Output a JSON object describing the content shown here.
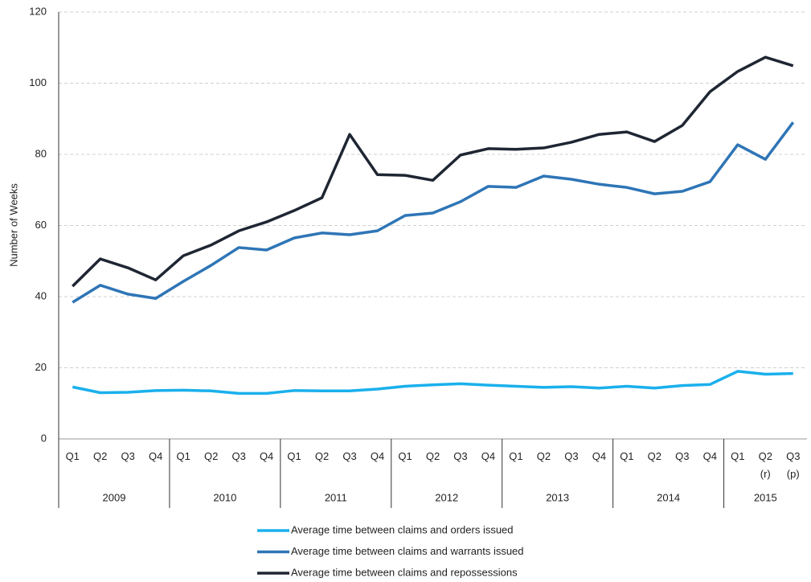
{
  "chart_data": {
    "type": "line",
    "y_label": "Number of Weeks",
    "categories": [
      "Q1",
      "Q2",
      "Q3",
      "Q4",
      "Q1",
      "Q2",
      "Q3",
      "Q4",
      "Q1",
      "Q2",
      "Q3",
      "Q4",
      "Q1",
      "Q2",
      "Q3",
      "Q4",
      "Q1",
      "Q2",
      "Q3",
      "Q4",
      "Q1",
      "Q2",
      "Q3",
      "Q4",
      "Q1",
      "Q2\n(r)",
      "Q3\n(p)"
    ],
    "year_groups": [
      "2009",
      "2010",
      "2011",
      "2012",
      "2013",
      "2014",
      "2015"
    ],
    "series": [
      {
        "name": "Average time between claims and orders issued",
        "color": "#1ab0ec",
        "values": [
          14.6,
          13.0,
          13.1,
          13.6,
          13.7,
          13.5,
          12.8,
          12.8,
          13.6,
          13.5,
          13.5,
          14.0,
          14.8,
          15.2,
          15.5,
          15.1,
          14.8,
          14.5,
          14.7,
          14.3,
          14.8,
          14.3,
          15.0,
          15.3,
          19.0,
          18.2,
          18.4
        ]
      },
      {
        "name": "Average time between claims and warrants issued",
        "color": "#2e75b6",
        "values": [
          38.4,
          43.2,
          40.7,
          39.5,
          44.3,
          48.8,
          53.8,
          53.1,
          56.5,
          57.9,
          57.4,
          58.5,
          62.8,
          63.5,
          66.7,
          71.0,
          70.7,
          73.9,
          73.0,
          71.6,
          70.7,
          68.9,
          69.6,
          72.3,
          82.7,
          78.6,
          89.0
        ]
      },
      {
        "name": "Average time between claims and repossessions",
        "color": "#1f2633",
        "values": [
          42.9,
          50.6,
          48.1,
          44.7,
          51.5,
          54.5,
          58.5,
          61.0,
          64.2,
          67.8,
          85.6,
          74.3,
          74.1,
          72.7,
          79.8,
          81.6,
          81.4,
          81.8,
          83.4,
          85.6,
          86.3,
          83.6,
          88.1,
          97.6,
          103.3,
          107.3,
          104.9
        ]
      }
    ],
    "ylim": [
      0,
      120
    ],
    "yticks": [
      0,
      20,
      40,
      60,
      80,
      100,
      120
    ],
    "grid": true
  }
}
